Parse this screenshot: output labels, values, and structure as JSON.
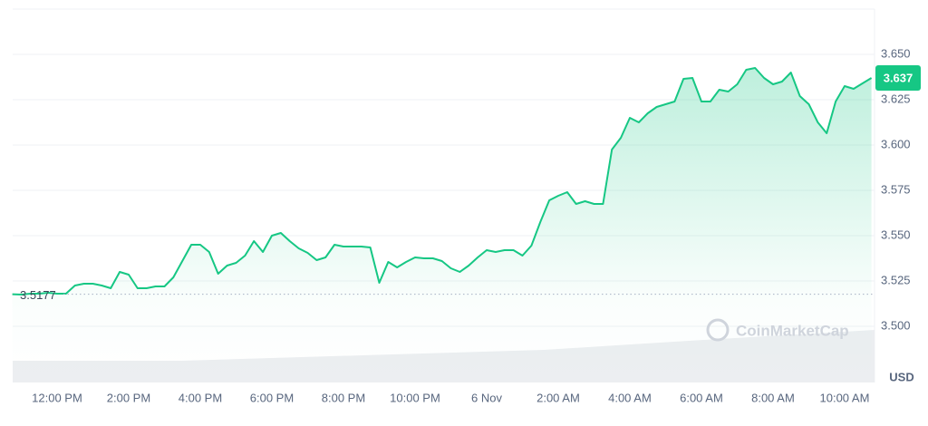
{
  "chart_data": {
    "type": "line",
    "color": "#16c784",
    "currency": "USD",
    "watermark": "CoinMarketCap",
    "reference_line": 3.5177,
    "categories": [
      null,
      null,
      null,
      null,
      null,
      "12:00 PM",
      null,
      null,
      null,
      null,
      null,
      null,
      null,
      "2:00 PM",
      null,
      null,
      null,
      null,
      null,
      null,
      null,
      "4:00 PM",
      null,
      null,
      null,
      null,
      null,
      null,
      null,
      "6:00 PM",
      null,
      null,
      null,
      null,
      null,
      null,
      null,
      "8:00 PM",
      null,
      null,
      null,
      null,
      null,
      null,
      null,
      "10:00 PM",
      null,
      null,
      null,
      null,
      null,
      null,
      null,
      "6 Nov",
      null,
      null,
      null,
      null,
      null,
      null,
      null,
      "2:00 AM",
      null,
      null,
      null,
      null,
      null,
      null,
      null,
      "4:00 AM",
      null,
      null,
      null,
      null,
      null,
      null,
      null,
      "6:00 AM",
      null,
      null,
      null,
      null,
      null,
      null,
      null,
      "8:00 AM",
      null,
      null,
      null,
      null,
      null,
      null,
      null,
      "10:00 AM",
      null,
      null,
      null
    ],
    "values": [
      3.5177,
      3.5175,
      3.518,
      3.518,
      3.5185,
      3.518,
      3.518,
      3.5225,
      3.5235,
      3.5235,
      3.5225,
      3.521,
      3.53,
      3.5285,
      3.521,
      3.521,
      3.522,
      3.522,
      3.527,
      3.536,
      3.545,
      3.545,
      3.541,
      3.529,
      3.5335,
      3.535,
      3.539,
      3.547,
      3.541,
      3.55,
      3.5515,
      3.547,
      3.543,
      3.5405,
      3.5365,
      3.538,
      3.545,
      3.544,
      3.544,
      3.544,
      3.5435,
      3.524,
      3.5355,
      3.5325,
      3.5355,
      3.538,
      3.5375,
      3.5375,
      3.536,
      3.532,
      3.53,
      3.5335,
      3.538,
      3.542,
      3.541,
      3.542,
      3.542,
      3.539,
      3.5445,
      3.5575,
      3.5695,
      3.572,
      3.574,
      3.5675,
      3.569,
      3.5675,
      3.5675,
      3.5975,
      3.604,
      3.615,
      3.6125,
      3.6175,
      3.621,
      3.6225,
      3.624,
      3.6365,
      3.637,
      3.624,
      3.624,
      3.6305,
      3.6295,
      3.6335,
      3.6415,
      3.6425,
      3.637,
      3.6335,
      3.635,
      3.64,
      3.627,
      3.6225,
      3.6125,
      3.6065,
      3.624,
      3.6325,
      3.631,
      3.634,
      3.637
    ],
    "ylim": [
      3.47,
      3.675
    ],
    "yticks": [
      {
        "value": 3.5,
        "label": "3.500"
      },
      {
        "value": 3.525,
        "label": "3.525"
      },
      {
        "value": 3.55,
        "label": "3.550"
      },
      {
        "value": 3.575,
        "label": "3.575"
      },
      {
        "value": 3.6,
        "label": "3.600"
      },
      {
        "value": 3.625,
        "label": "3.625"
      },
      {
        "value": 3.65,
        "label": "3.650"
      }
    ],
    "grid": true
  }
}
